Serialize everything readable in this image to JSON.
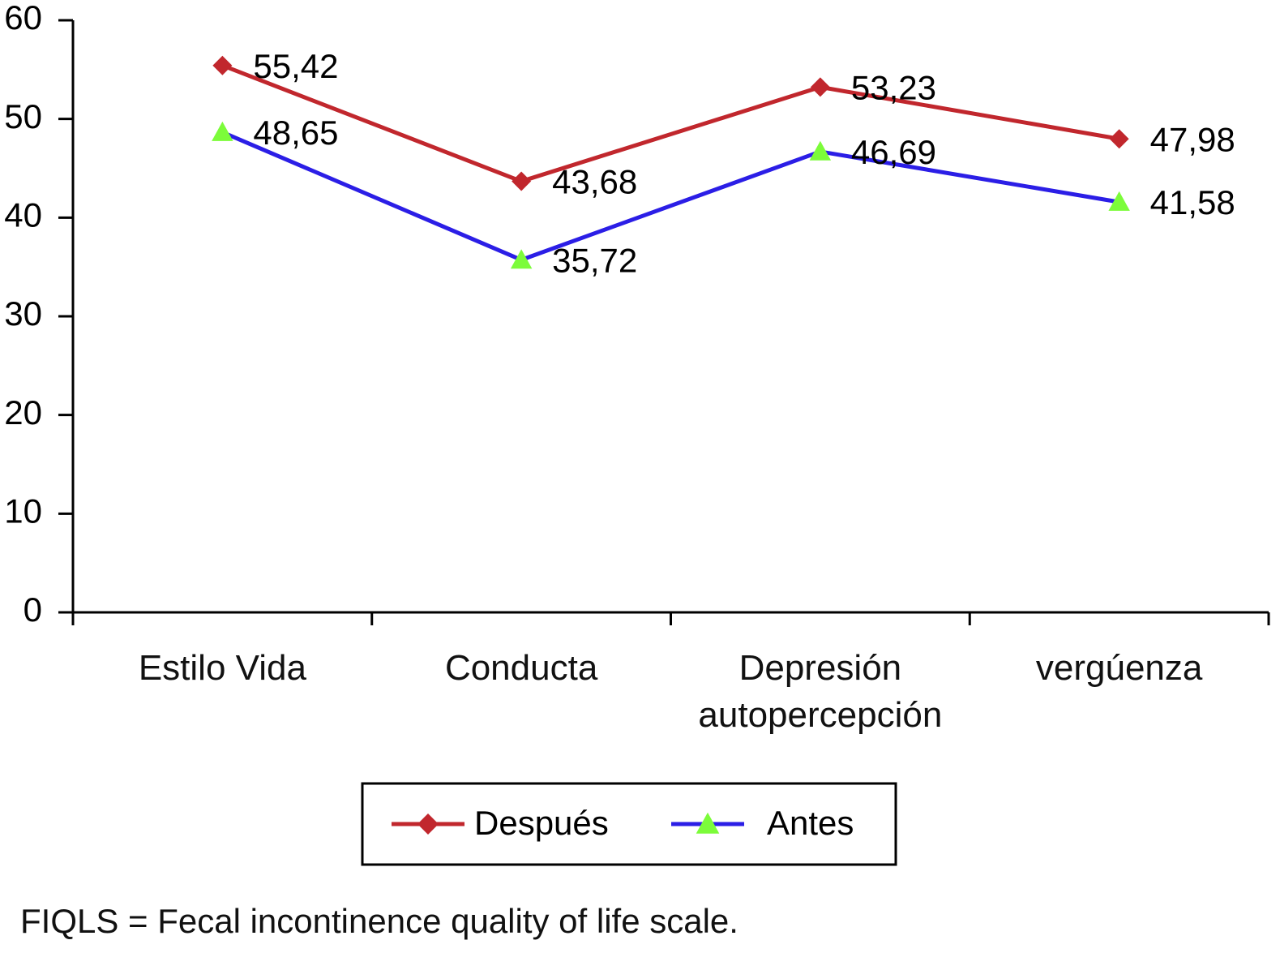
{
  "chart_data": {
    "type": "line",
    "categories": [
      "Estilo Vida",
      "Conducta",
      "Depresión autopercepción",
      "vergúenza"
    ],
    "series": [
      {
        "name": "Después",
        "color": "#c1272d",
        "marker": "diamond",
        "marker_color": "#c1272d",
        "label_color": "#c1272d",
        "values": [
          55.42,
          43.68,
          53.23,
          47.98
        ],
        "value_labels": [
          "55,42",
          "43,68",
          "53,23",
          "47,98"
        ]
      },
      {
        "name": "Antes",
        "color": "#2b1ee6",
        "marker": "triangle",
        "marker_color": "#7cfc3a",
        "label_color": "#000000",
        "values": [
          48.65,
          35.72,
          46.69,
          41.58
        ],
        "value_labels": [
          "48,65",
          "35,72",
          "46,69",
          "41,58"
        ]
      }
    ],
    "ylim": [
      0,
      60
    ],
    "yticks": [
      0,
      10,
      20,
      30,
      40,
      50,
      60
    ],
    "grid": false,
    "footnote": "FIQLS = Fecal incontinence quality of life scale."
  }
}
